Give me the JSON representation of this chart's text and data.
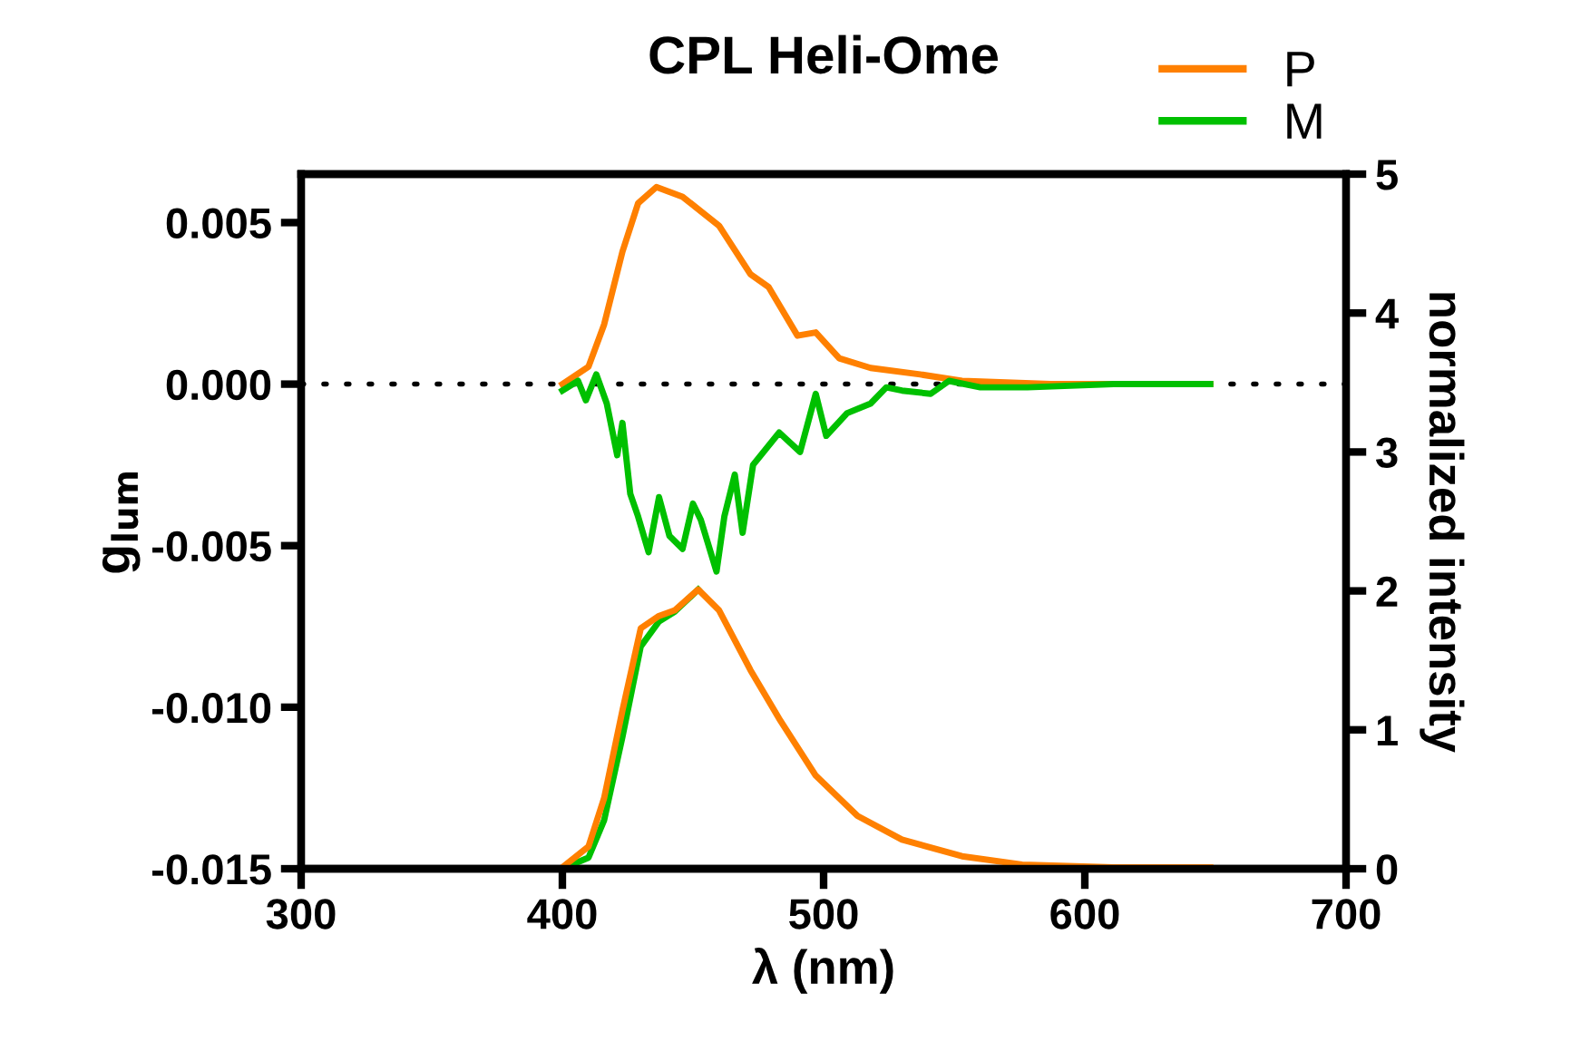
{
  "chart_data": {
    "type": "line",
    "title": "CPL Heli-Ome",
    "xlabel": "λ (nm)",
    "ylabel": "g$_{lum}$",
    "y2label": "normalized intensity",
    "xlim": [
      300,
      700
    ],
    "xticks": [
      300,
      400,
      500,
      600,
      700
    ],
    "ylim": [
      -0.015,
      0.0065
    ],
    "yticks": [
      {
        "value": -0.015,
        "label": "-0.015"
      },
      {
        "value": -0.01,
        "label": "-0.010"
      },
      {
        "value": -0.005,
        "label": "-0.005"
      },
      {
        "value": 0,
        "label": "0.000"
      },
      {
        "value": 0.005,
        "label": "0.005"
      }
    ],
    "y2lim": [
      0,
      5
    ],
    "y2ticks": [
      0,
      1,
      2,
      3,
      4,
      5
    ],
    "grid": false,
    "legend": "top right",
    "marker": "none",
    "line_style": "solid",
    "ref_lines": [
      {
        "axis": "y",
        "value": 0,
        "line_style": "dotted",
        "color": "#000000"
      }
    ],
    "series": [
      {
        "name": "P",
        "color": "#ff8000",
        "x": [
          400,
          410,
          416,
          423,
          429,
          436,
          446,
          460,
          472,
          479,
          490,
          497,
          506,
          518,
          537,
          553,
          587,
          648
        ],
        "values": [
          0,
          0.00054,
          0.00185,
          0.0041,
          0.0056,
          0.0061,
          0.0058,
          0.0049,
          0.0034,
          0.003,
          0.0015,
          0.0016,
          0.0008,
          0.0005,
          0.0003,
          0.0001,
          0,
          0
        ]
      },
      {
        "name": "M",
        "color": "#00c000",
        "x": [
          400,
          406,
          409,
          413,
          417,
          421,
          423,
          426,
          429,
          433,
          437,
          441,
          446,
          450,
          453,
          459,
          462,
          466,
          469,
          473,
          483,
          491,
          497,
          501,
          509,
          518,
          524,
          530,
          541,
          548,
          560,
          578,
          611,
          648
        ],
        "values": [
          -0.0002,
          0.0001,
          -0.0005,
          0.0003,
          -0.0006,
          -0.0022,
          -0.0012,
          -0.0034,
          -0.0041,
          -0.0052,
          -0.0035,
          -0.0047,
          -0.0051,
          -0.0037,
          -0.0042,
          -0.0058,
          -0.0041,
          -0.0028,
          -0.0046,
          -0.0025,
          -0.0015,
          -0.0021,
          -0.0003,
          -0.0016,
          -0.0009,
          -0.0006,
          -0.0001,
          -0.0002,
          -0.0003,
          0.0001,
          -0.0001,
          -0.0001,
          0,
          0
        ]
      },
      {
        "axis": "y2",
        "color": "#00c000",
        "x": [
          400,
          410,
          416,
          423,
          430,
          437,
          443,
          452
        ],
        "values": [
          0,
          0.08,
          0.35,
          0.95,
          1.6,
          1.78,
          1.85,
          2.01
        ]
      },
      {
        "axis": "y2",
        "color": "#ff8000",
        "x": [
          400,
          410,
          416,
          423,
          430,
          437,
          443,
          452,
          460,
          472,
          483,
          497,
          513,
          530,
          553,
          576,
          611,
          648
        ],
        "values": [
          0.01,
          0.16,
          0.51,
          1.14,
          1.73,
          1.82,
          1.86,
          2.01,
          1.86,
          1.43,
          1.08,
          0.67,
          0.38,
          0.21,
          0.09,
          0.03,
          0.01,
          0.01
        ]
      }
    ]
  }
}
